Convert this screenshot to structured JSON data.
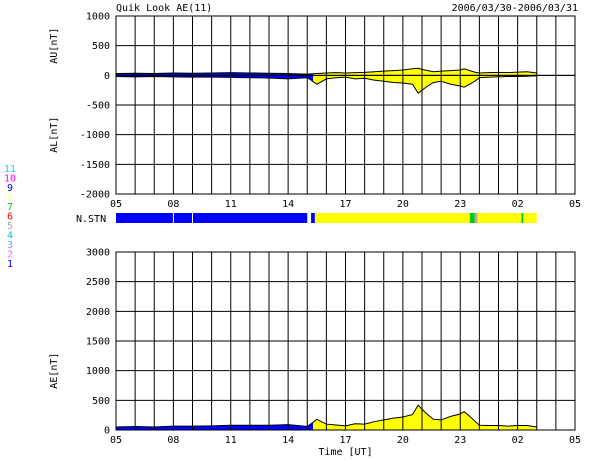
{
  "header": {
    "title": "Quik Look AE(11)",
    "date_range": "2006/03/30-2006/03/31"
  },
  "station_legend": {
    "numbers": [
      "11",
      "10",
      "9",
      "8",
      "7",
      "6",
      "5",
      "4",
      "3",
      "2",
      "1"
    ],
    "colors": [
      "#00e5e5",
      "#ff00ff",
      "#0000ff",
      "#ffff99",
      "#00cc00",
      "#ff0000",
      "#aaaaaa",
      "#00cccc",
      "#66aaff",
      "#ff66ff",
      "#0000ff"
    ]
  },
  "nstn_label": "N.STN",
  "colors": {
    "quiet_fill": "#0000ff",
    "active_fill": "#ffff00",
    "green_fill": "#00cc00",
    "outline": "#000000",
    "grid": "#000000"
  },
  "chart_data": [
    {
      "type": "area",
      "name": "AU/AL panel",
      "ylabel_upper": "AU[nT]",
      "ylabel_lower": "AL[nT]",
      "ylim": [
        -2000,
        1000
      ],
      "yticks": [
        1000,
        500,
        0,
        -500,
        -1000,
        -1500,
        -2000
      ],
      "xlim": [
        5,
        29
      ],
      "xticks": [
        "05",
        "08",
        "11",
        "14",
        "17",
        "20",
        "23",
        "02",
        "05"
      ],
      "grid": true,
      "x_hours": [
        5,
        6,
        7,
        8,
        9,
        10,
        11,
        12,
        13,
        14,
        14.5,
        15,
        15.2,
        15.5,
        16,
        16.5,
        17,
        17.5,
        18,
        18.5,
        19,
        19.5,
        20,
        20.5,
        20.8,
        21,
        21.3,
        21.6,
        22,
        22.5,
        23,
        23.2,
        23.5,
        23.8,
        24,
        24.5,
        25,
        25.5,
        26,
        26.5,
        27
      ],
      "AU": [
        30,
        35,
        30,
        40,
        35,
        40,
        45,
        40,
        35,
        30,
        25,
        20,
        25,
        30,
        40,
        45,
        40,
        45,
        50,
        60,
        70,
        80,
        90,
        110,
        120,
        100,
        80,
        60,
        70,
        80,
        90,
        110,
        80,
        50,
        40,
        45,
        50,
        45,
        55,
        60,
        40
      ],
      "AL": [
        -20,
        -25,
        -20,
        -25,
        -30,
        -30,
        -35,
        -40,
        -45,
        -60,
        -50,
        -40,
        -80,
        -150,
        -60,
        -40,
        -30,
        -60,
        -50,
        -80,
        -100,
        -120,
        -130,
        -150,
        -300,
        -250,
        -180,
        -120,
        -100,
        -150,
        -180,
        -200,
        -150,
        -90,
        -40,
        -30,
        -25,
        -20,
        -20,
        -15,
        -10
      ]
    },
    {
      "type": "area",
      "name": "AE panel",
      "ylabel": "AE[nT]",
      "ylim": [
        0,
        3000
      ],
      "yticks": [
        3000,
        2500,
        2000,
        1500,
        1000,
        500,
        0
      ],
      "xlim": [
        5,
        29
      ],
      "xticks": [
        "05",
        "08",
        "11",
        "14",
        "17",
        "20",
        "23",
        "02",
        "05"
      ],
      "xlabel": "Time [UT]",
      "grid": true,
      "x_hours": [
        5,
        6,
        7,
        8,
        9,
        10,
        11,
        12,
        13,
        14,
        14.5,
        15,
        15.2,
        15.5,
        16,
        16.5,
        17,
        17.5,
        18,
        18.5,
        19,
        19.5,
        20,
        20.5,
        20.8,
        21,
        21.3,
        21.6,
        22,
        22.5,
        23,
        23.2,
        23.5,
        23.8,
        24,
        24.5,
        25,
        25.5,
        26,
        26.5,
        27
      ],
      "AE": [
        50,
        60,
        50,
        65,
        65,
        70,
        80,
        80,
        80,
        90,
        75,
        60,
        105,
        180,
        100,
        85,
        70,
        105,
        100,
        140,
        170,
        200,
        220,
        260,
        420,
        350,
        260,
        180,
        170,
        230,
        270,
        310,
        230,
        140,
        80,
        75,
        75,
        65,
        75,
        75,
        50
      ]
    }
  ],
  "nstn_bar": [
    {
      "from": 5,
      "to": 8,
      "color": "#0000ff"
    },
    {
      "from": 8,
      "to": 9,
      "color": "#0000ff"
    },
    {
      "from": 9,
      "to": 15,
      "color": "#0000ff"
    },
    {
      "from": 15.2,
      "to": 15.4,
      "color": "#0000ff"
    },
    {
      "from": 15.4,
      "to": 23.5,
      "color": "#ffff00"
    },
    {
      "from": 23.5,
      "to": 23.75,
      "color": "#00cc00"
    },
    {
      "from": 23.75,
      "to": 23.9,
      "color": "#aaaaaa"
    },
    {
      "from": 23.9,
      "to": 26.2,
      "color": "#ffff00"
    },
    {
      "from": 26.2,
      "to": 26.3,
      "color": "#00cc00"
    },
    {
      "from": 26.3,
      "to": 27,
      "color": "#ffff00"
    }
  ]
}
